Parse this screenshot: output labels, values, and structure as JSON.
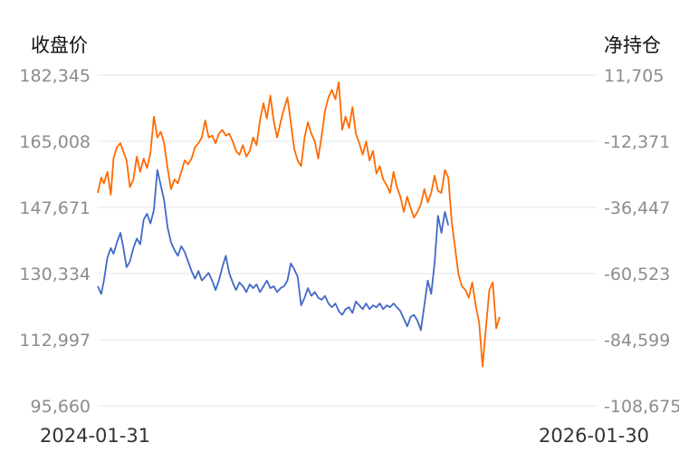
{
  "chart_data": {
    "type": "line",
    "left_title": "收盘价",
    "right_title": "净持仓",
    "left_axis": {
      "ticks": [
        182345,
        165008,
        147671,
        130334,
        112997,
        95660
      ],
      "tick_labels": [
        "182,345",
        "165,008",
        "147,671",
        "130,334",
        "112,997",
        "95,660"
      ],
      "range": [
        95660,
        182345
      ]
    },
    "right_axis": {
      "ticks": [
        11705,
        -12371,
        -36447,
        -60523,
        -84599,
        -108675
      ],
      "tick_labels": [
        "11,705",
        "-12,371",
        "-36,447",
        "-60,523",
        "-84,599",
        "-108,675"
      ],
      "range": [
        -108675,
        11705
      ]
    },
    "x_start_label": "2024-01-31",
    "x_end_label": "2026-01-30",
    "x_range": [
      "2024-01-31",
      "2026-01-30"
    ],
    "grid": true,
    "legend": "none",
    "series": [
      {
        "axis": "left",
        "color": "#ff6a00",
        "points": [
          [
            "2024-01-31",
            151500
          ],
          [
            "2024-02-05",
            155500
          ],
          [
            "2024-02-09",
            154000
          ],
          [
            "2024-02-14",
            157000
          ],
          [
            "2024-02-19",
            151000
          ],
          [
            "2024-02-23",
            160500
          ],
          [
            "2024-02-28",
            163500
          ],
          [
            "2024-03-04",
            164500
          ],
          [
            "2024-03-08",
            162500
          ],
          [
            "2024-03-13",
            160000
          ],
          [
            "2024-03-18",
            153000
          ],
          [
            "2024-03-23",
            155000
          ],
          [
            "2024-03-28",
            161000
          ],
          [
            "2024-04-02",
            157000
          ],
          [
            "2024-04-07",
            160500
          ],
          [
            "2024-04-12",
            158000
          ],
          [
            "2024-04-17",
            162000
          ],
          [
            "2024-04-22",
            171500
          ],
          [
            "2024-04-27",
            166000
          ],
          [
            "2024-05-02",
            167500
          ],
          [
            "2024-05-07",
            164500
          ],
          [
            "2024-05-12",
            158000
          ],
          [
            "2024-05-17",
            152500
          ],
          [
            "2024-05-22",
            155000
          ],
          [
            "2024-05-27",
            154000
          ],
          [
            "2024-06-01",
            157000
          ],
          [
            "2024-06-06",
            160000
          ],
          [
            "2024-06-11",
            159000
          ],
          [
            "2024-06-16",
            160500
          ],
          [
            "2024-06-21",
            163500
          ],
          [
            "2024-06-26",
            164500
          ],
          [
            "2024-07-01",
            166000
          ],
          [
            "2024-07-06",
            170500
          ],
          [
            "2024-07-11",
            166000
          ],
          [
            "2024-07-16",
            166500
          ],
          [
            "2024-07-21",
            164500
          ],
          [
            "2024-07-26",
            167000
          ],
          [
            "2024-07-31",
            168000
          ],
          [
            "2024-08-05",
            166500
          ],
          [
            "2024-08-10",
            167000
          ],
          [
            "2024-08-15",
            165000
          ],
          [
            "2024-08-20",
            162500
          ],
          [
            "2024-08-25",
            161500
          ],
          [
            "2024-08-30",
            164000
          ],
          [
            "2024-09-04",
            161000
          ],
          [
            "2024-09-09",
            162500
          ],
          [
            "2024-09-14",
            166000
          ],
          [
            "2024-09-19",
            164000
          ],
          [
            "2024-09-24",
            170500
          ],
          [
            "2024-09-29",
            175000
          ],
          [
            "2024-10-04",
            171000
          ],
          [
            "2024-10-09",
            177000
          ],
          [
            "2024-10-14",
            170500
          ],
          [
            "2024-10-19",
            166000
          ],
          [
            "2024-10-24",
            170000
          ],
          [
            "2024-10-29",
            173500
          ],
          [
            "2024-11-03",
            176500
          ],
          [
            "2024-11-08",
            170000
          ],
          [
            "2024-11-13",
            163000
          ],
          [
            "2024-11-18",
            160000
          ],
          [
            "2024-11-23",
            158500
          ],
          [
            "2024-11-28",
            166000
          ],
          [
            "2024-12-03",
            170000
          ],
          [
            "2024-12-08",
            167000
          ],
          [
            "2024-12-13",
            165000
          ],
          [
            "2024-12-18",
            160500
          ],
          [
            "2024-12-23",
            166500
          ],
          [
            "2024-12-28",
            173000
          ],
          [
            "2025-01-02",
            176500
          ],
          [
            "2025-01-07",
            178500
          ],
          [
            "2025-01-12",
            176000
          ],
          [
            "2025-01-17",
            180500
          ],
          [
            "2025-01-22",
            168000
          ],
          [
            "2025-01-27",
            171500
          ],
          [
            "2025-02-01",
            168500
          ],
          [
            "2025-02-06",
            174000
          ],
          [
            "2025-02-11",
            167000
          ],
          [
            "2025-02-16",
            164500
          ],
          [
            "2025-02-21",
            161500
          ],
          [
            "2025-02-26",
            165000
          ],
          [
            "2025-03-03",
            160000
          ],
          [
            "2025-03-08",
            162500
          ],
          [
            "2025-03-13",
            156500
          ],
          [
            "2025-03-18",
            158500
          ],
          [
            "2025-03-23",
            155000
          ],
          [
            "2025-03-28",
            153500
          ],
          [
            "2025-04-02",
            151500
          ],
          [
            "2025-04-07",
            157000
          ],
          [
            "2025-04-12",
            153000
          ],
          [
            "2025-04-17",
            150500
          ],
          [
            "2025-04-22",
            146500
          ],
          [
            "2025-04-27",
            150500
          ],
          [
            "2025-05-02",
            147500
          ],
          [
            "2025-05-07",
            145000
          ],
          [
            "2025-05-12",
            146500
          ],
          [
            "2025-05-17",
            148500
          ],
          [
            "2025-05-22",
            152500
          ],
          [
            "2025-05-27",
            149000
          ],
          [
            "2025-06-01",
            151500
          ],
          [
            "2025-06-06",
            156000
          ],
          [
            "2025-06-11",
            152000
          ],
          [
            "2025-06-16",
            151500
          ],
          [
            "2025-06-21",
            157500
          ],
          [
            "2025-06-26",
            155500
          ],
          [
            "2025-07-01",
            144000
          ],
          [
            "2025-07-06",
            137000
          ],
          [
            "2025-07-11",
            130000
          ],
          [
            "2025-07-16",
            127000
          ],
          [
            "2025-07-21",
            126000
          ],
          [
            "2025-07-26",
            124000
          ],
          [
            "2025-07-31",
            128000
          ],
          [
            "2025-08-05",
            122000
          ],
          [
            "2025-08-10",
            117500
          ],
          [
            "2025-08-15",
            106000
          ],
          [
            "2025-08-20",
            116000
          ],
          [
            "2025-08-25",
            126000
          ],
          [
            "2025-08-30",
            128000
          ],
          [
            "2025-09-04",
            116000
          ],
          [
            "2025-09-09",
            119000
          ]
        ]
      },
      {
        "axis": "left",
        "color": "#4169c8",
        "points": [
          [
            "2024-01-31",
            127000
          ],
          [
            "2024-02-05",
            125000
          ],
          [
            "2024-02-09",
            128500
          ],
          [
            "2024-02-14",
            134500
          ],
          [
            "2024-02-19",
            137000
          ],
          [
            "2024-02-23",
            135500
          ],
          [
            "2024-02-28",
            138500
          ],
          [
            "2024-03-04",
            141000
          ],
          [
            "2024-03-08",
            137500
          ],
          [
            "2024-03-13",
            132000
          ],
          [
            "2024-03-18",
            133500
          ],
          [
            "2024-03-23",
            137000
          ],
          [
            "2024-03-28",
            139500
          ],
          [
            "2024-04-02",
            138000
          ],
          [
            "2024-04-07",
            144500
          ],
          [
            "2024-04-12",
            146000
          ],
          [
            "2024-04-17",
            143500
          ],
          [
            "2024-04-22",
            147000
          ],
          [
            "2024-04-27",
            157500
          ],
          [
            "2024-05-02",
            153500
          ],
          [
            "2024-05-07",
            149500
          ],
          [
            "2024-05-12",
            142500
          ],
          [
            "2024-05-17",
            138500
          ],
          [
            "2024-05-22",
            136500
          ],
          [
            "2024-05-27",
            135000
          ],
          [
            "2024-06-01",
            137500
          ],
          [
            "2024-06-06",
            136000
          ],
          [
            "2024-06-11",
            133500
          ],
          [
            "2024-06-16",
            131000
          ],
          [
            "2024-06-21",
            129000
          ],
          [
            "2024-06-26",
            131000
          ],
          [
            "2024-07-01",
            128500
          ],
          [
            "2024-07-06",
            129500
          ],
          [
            "2024-07-11",
            130500
          ],
          [
            "2024-07-16",
            128500
          ],
          [
            "2024-07-21",
            126000
          ],
          [
            "2024-07-26",
            128500
          ],
          [
            "2024-07-31",
            132000
          ],
          [
            "2024-08-05",
            135000
          ],
          [
            "2024-08-10",
            130500
          ],
          [
            "2024-08-15",
            128000
          ],
          [
            "2024-08-20",
            126000
          ],
          [
            "2024-08-25",
            128000
          ],
          [
            "2024-08-30",
            127000
          ],
          [
            "2024-09-04",
            125500
          ],
          [
            "2024-09-09",
            127500
          ],
          [
            "2024-09-14",
            126500
          ],
          [
            "2024-09-19",
            127500
          ],
          [
            "2024-09-24",
            125500
          ],
          [
            "2024-09-29",
            127000
          ],
          [
            "2024-10-04",
            128500
          ],
          [
            "2024-10-09",
            126500
          ],
          [
            "2024-10-14",
            127000
          ],
          [
            "2024-10-19",
            125500
          ],
          [
            "2024-10-24",
            126500
          ],
          [
            "2024-10-29",
            127000
          ],
          [
            "2024-11-03",
            128500
          ],
          [
            "2024-11-08",
            133000
          ],
          [
            "2024-11-13",
            131500
          ],
          [
            "2024-11-18",
            129500
          ],
          [
            "2024-11-23",
            122000
          ],
          [
            "2024-11-28",
            124000
          ],
          [
            "2024-12-03",
            126500
          ],
          [
            "2024-12-08",
            124500
          ],
          [
            "2024-12-13",
            125500
          ],
          [
            "2024-12-18",
            124000
          ],
          [
            "2024-12-23",
            123500
          ],
          [
            "2024-12-28",
            124500
          ],
          [
            "2025-01-02",
            122500
          ],
          [
            "2025-01-07",
            121500
          ],
          [
            "2025-01-12",
            122500
          ],
          [
            "2025-01-17",
            120500
          ],
          [
            "2025-01-22",
            119500
          ],
          [
            "2025-01-27",
            121000
          ],
          [
            "2025-02-01",
            121500
          ],
          [
            "2025-02-06",
            120000
          ],
          [
            "2025-02-11",
            123000
          ],
          [
            "2025-02-16",
            122000
          ],
          [
            "2025-02-21",
            121000
          ],
          [
            "2025-02-26",
            122500
          ],
          [
            "2025-03-03",
            121000
          ],
          [
            "2025-03-08",
            122000
          ],
          [
            "2025-03-13",
            121500
          ],
          [
            "2025-03-18",
            122500
          ],
          [
            "2025-03-23",
            121000
          ],
          [
            "2025-03-28",
            122000
          ],
          [
            "2025-04-02",
            121500
          ],
          [
            "2025-04-07",
            122500
          ],
          [
            "2025-04-12",
            121500
          ],
          [
            "2025-04-17",
            120500
          ],
          [
            "2025-04-22",
            118500
          ],
          [
            "2025-04-27",
            116500
          ],
          [
            "2025-05-02",
            119000
          ],
          [
            "2025-05-07",
            119500
          ],
          [
            "2025-05-12",
            118000
          ],
          [
            "2025-05-17",
            115500
          ],
          [
            "2025-05-22",
            122000
          ],
          [
            "2025-05-27",
            128500
          ],
          [
            "2025-06-01",
            125000
          ],
          [
            "2025-06-06",
            133000
          ],
          [
            "2025-06-11",
            145500
          ],
          [
            "2025-06-16",
            141000
          ],
          [
            "2025-06-21",
            146500
          ],
          [
            "2025-06-26",
            143000
          ]
        ]
      }
    ]
  }
}
